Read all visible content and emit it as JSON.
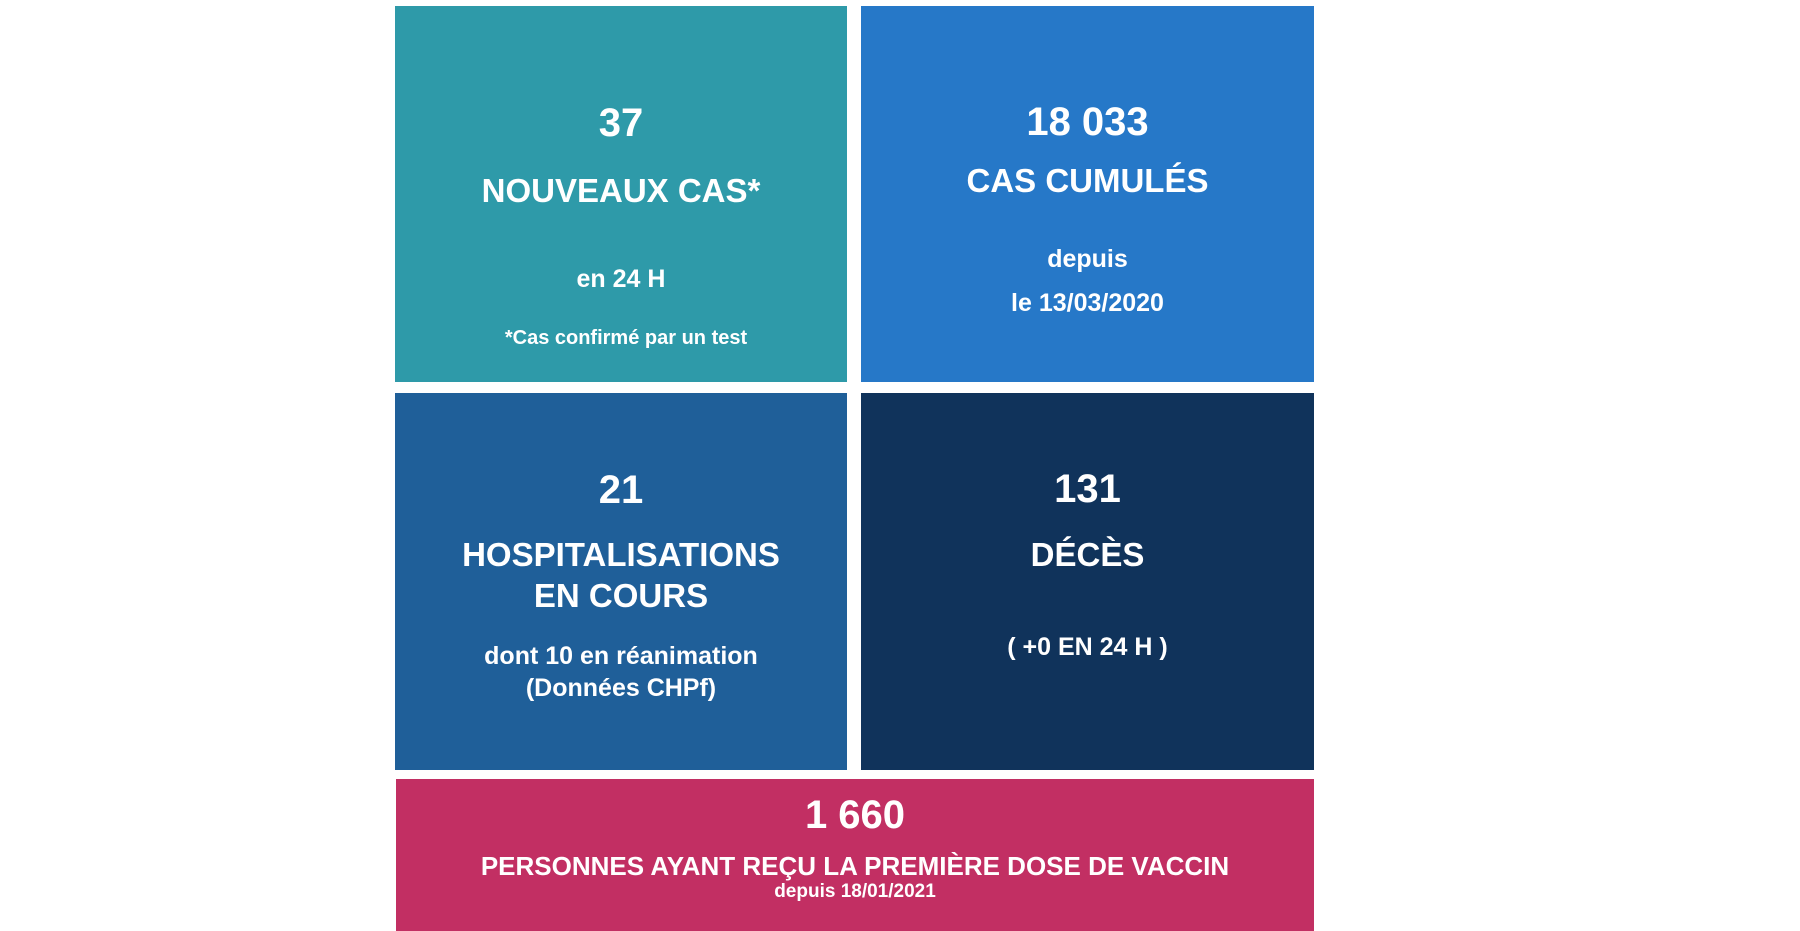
{
  "colors": {
    "new_cases": "#2e9aa9",
    "total_cases": "#2678c8",
    "hospitalisations": "#1f5f99",
    "deaths": "#10335b",
    "vaccine": "#c22f63",
    "text": "#ffffff"
  },
  "new_cases": {
    "value": "37",
    "title": "NOUVEAUX CAS*",
    "period": "en 24 H",
    "footnote": "*Cas confirmé par un test"
  },
  "total_cases": {
    "value": "18 033",
    "title": "CAS CUMULÉS",
    "since_label": "depuis",
    "since_date": "le 13/03/2020"
  },
  "hospitalisations": {
    "value": "21",
    "title_line1": "HOSPITALISATIONS",
    "title_line2": "EN COURS",
    "detail_line1": "dont 10 en réanimation",
    "detail_line2": "(Données CHPf)"
  },
  "deaths": {
    "value": "131",
    "title": "DÉCÈS",
    "change": "( +0 EN 24 H )"
  },
  "vaccine": {
    "value": "1 660",
    "title": "PERSONNES AYANT REÇU LA PREMIÈRE DOSE DE VACCIN",
    "since": "depuis 18/01/2021"
  }
}
